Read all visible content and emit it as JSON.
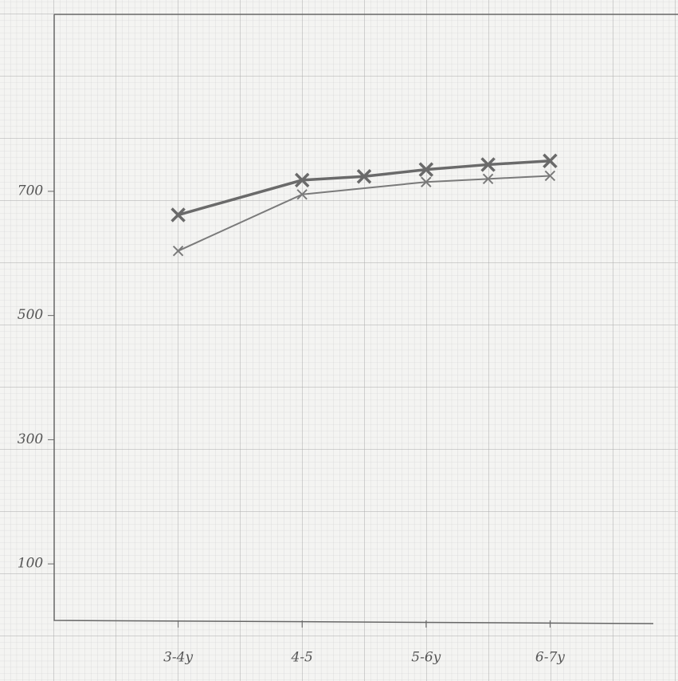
{
  "chart_data": {
    "type": "line",
    "xlim": [
      -1,
      9
    ],
    "xticks": [
      {
        "value": 1,
        "label": "3-4y"
      },
      {
        "value": 3,
        "label": "4-5"
      },
      {
        "value": 5,
        "label": "5-6y"
      },
      {
        "value": 7,
        "label": "6-7y"
      }
    ],
    "ylim": [
      0,
      985
    ],
    "yticks": [
      100,
      300,
      500,
      700
    ],
    "series": [
      {
        "color": "#6a6a6a",
        "x": [
          1,
          3,
          4,
          5,
          6,
          7
        ],
        "values": [
          662,
          718,
          724,
          735,
          743,
          749
        ]
      },
      {
        "color": "#7a7a7a",
        "x": [
          1,
          3,
          5,
          6,
          7
        ],
        "values": [
          604,
          695,
          715,
          720,
          725
        ]
      }
    ]
  }
}
